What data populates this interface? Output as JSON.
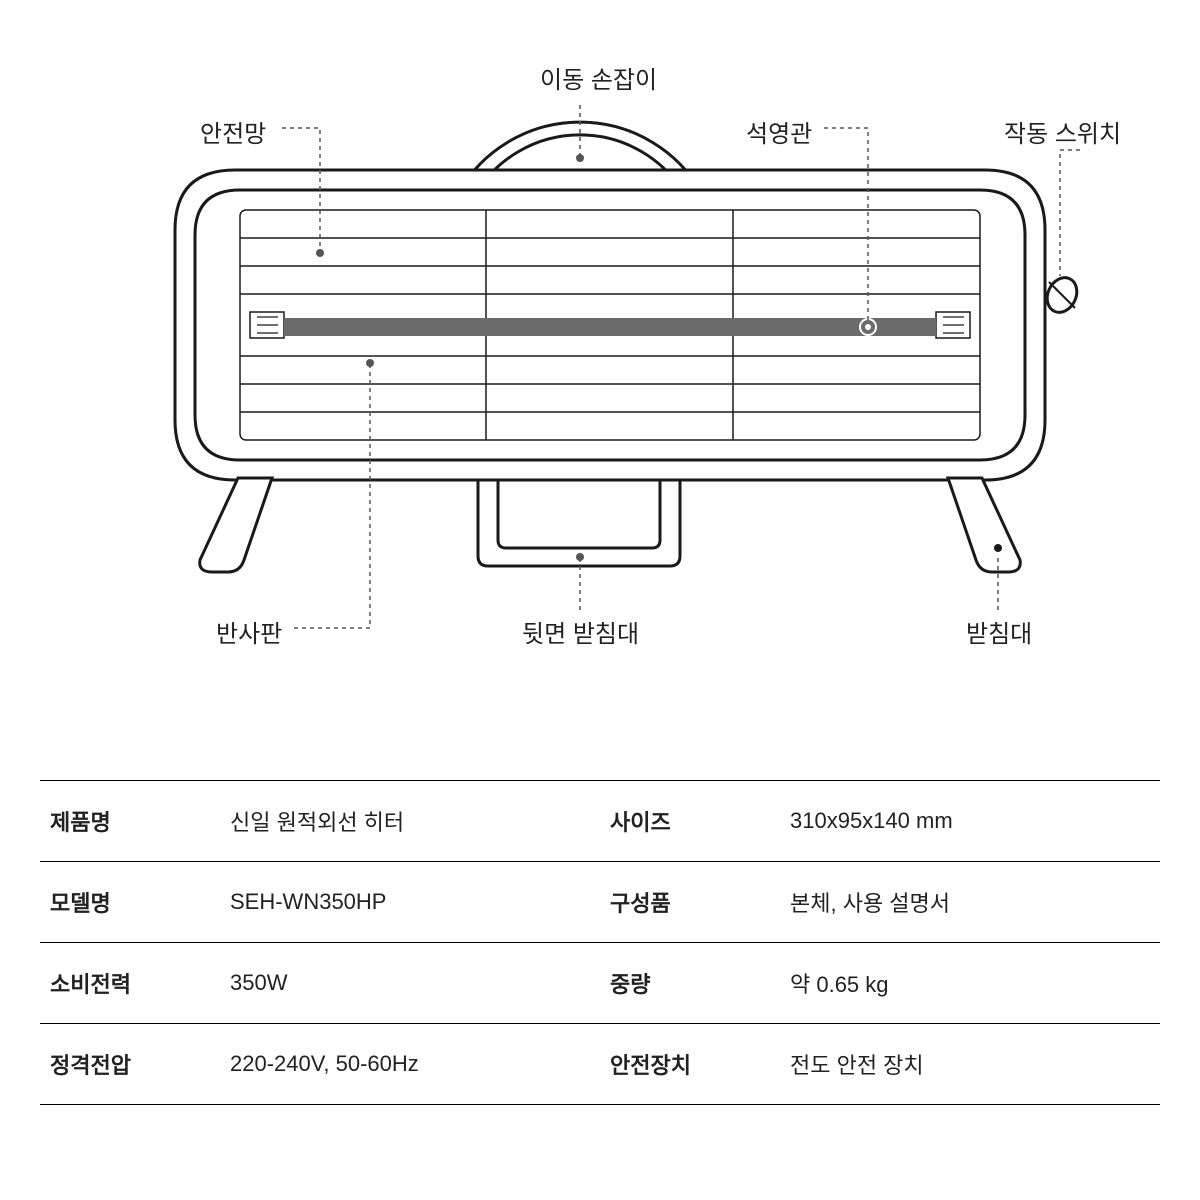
{
  "diagram": {
    "stroke": "#1a1a1a",
    "stroke_width": 3,
    "grill_stroke_width": 1.5,
    "leader_stroke": "#555555",
    "leader_width": 1.5,
    "leader_dash": "4 4",
    "tube_fill": "#6b6b6b",
    "tube_ring_stroke": "#ffffff",
    "label_font_size": 24,
    "label_color": "#222222",
    "labels": {
      "handle": "이동 손잡이",
      "safety_grid": "안전망",
      "quartz_tube": "석영관",
      "switch": "작동 스위치",
      "reflector": "반사판",
      "rear_stand": "뒷면 받침대",
      "stand": "받침대"
    }
  },
  "specs": {
    "border_color": "#000000",
    "key_font_weight": 700,
    "val_font_weight": 400,
    "font_size": 22,
    "rows": [
      {
        "k1": "제품명",
        "v1": "신일 원적외선 히터",
        "k2": "사이즈",
        "v2": "310x95x140 mm"
      },
      {
        "k1": "모델명",
        "v1": "SEH-WN350HP",
        "k2": "구성품",
        "v2": "본체, 사용 설명서"
      },
      {
        "k1": "소비전력",
        "v1": "350W",
        "k2": "중량",
        "v2": "약 0.65 kg"
      },
      {
        "k1": "정격전압",
        "v1": "220-240V, 50-60Hz",
        "k2": "안전장치",
        "v2": "전도 안전 장치"
      }
    ]
  }
}
